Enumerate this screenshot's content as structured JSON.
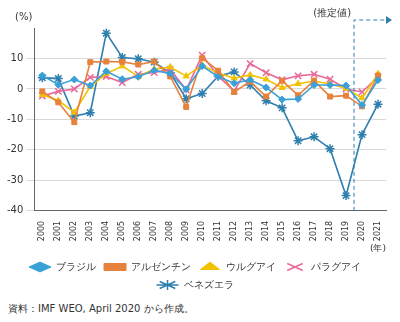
{
  "chart_data": {
    "type": "line",
    "y_label": "(%)",
    "x_label": "(年)",
    "source": "資料：IMF WEO, April 2020 から作成。",
    "annotations": [
      {
        "text": "(推定値)",
        "from": "2020",
        "to": "2021"
      }
    ],
    "categories": [
      "2000",
      "2001",
      "2002",
      "2003",
      "2004",
      "2005",
      "2006",
      "2007",
      "2008",
      "2009",
      "2010",
      "2011",
      "2012",
      "2013",
      "2014",
      "2015",
      "2016",
      "2017",
      "2018",
      "2019",
      "2020",
      "2021"
    ],
    "series": [
      {
        "name": "ブラジル",
        "color": "#3aa0d8",
        "marker": "diamond",
        "values": [
          4.4,
          1.4,
          3.1,
          1.1,
          5.8,
          3.2,
          4.0,
          6.1,
          5.1,
          -0.1,
          7.5,
          4.0,
          1.9,
          3.0,
          0.5,
          -3.5,
          -3.3,
          1.3,
          1.3,
          1.1,
          -5.3,
          2.9
        ]
      },
      {
        "name": "アルゼンチン",
        "color": "#e6823c",
        "marker": "square",
        "values": [
          -0.8,
          -4.4,
          -10.9,
          8.8,
          9.0,
          8.9,
          8.0,
          9.0,
          4.1,
          -5.9,
          10.1,
          6.0,
          -1.0,
          2.4,
          -2.5,
          2.7,
          -2.1,
          2.7,
          -2.5,
          -2.2,
          -5.7,
          4.4
        ]
      },
      {
        "name": "ウルグアイ",
        "color": "#f2c200",
        "marker": "triangle",
        "values": [
          -1.9,
          -3.8,
          -7.7,
          0.8,
          5.0,
          7.5,
          4.1,
          6.5,
          7.2,
          4.2,
          7.8,
          5.2,
          3.5,
          4.6,
          3.2,
          0.4,
          1.7,
          2.6,
          1.6,
          0.2,
          -3.0,
          5.0
        ]
      },
      {
        "name": "パラグアイ",
        "color": "#e8699a",
        "marker": "x",
        "values": [
          -2.3,
          -0.8,
          0.0,
          3.8,
          4.1,
          2.1,
          4.8,
          5.4,
          6.4,
          -0.3,
          11.1,
          4.2,
          -0.7,
          8.3,
          5.3,
          3.0,
          4.3,
          4.8,
          3.2,
          0.0,
          -1.0,
          4.0
        ]
      },
      {
        "name": "ベネズエラ",
        "color": "#2e7fae",
        "marker": "star",
        "values": [
          3.7,
          3.4,
          -8.9,
          -7.8,
          18.3,
          10.3,
          9.9,
          8.8,
          5.3,
          -3.2,
          -1.5,
          4.2,
          5.6,
          1.3,
          -3.9,
          -6.2,
          -17.0,
          -15.7,
          -19.6,
          -35.0,
          -15.0,
          -5.0
        ]
      }
    ],
    "ylim": [
      -40,
      20
    ],
    "yticks": [
      -40,
      -30,
      -20,
      -10,
      0,
      10
    ],
    "grid": true,
    "legend": "bottom"
  }
}
